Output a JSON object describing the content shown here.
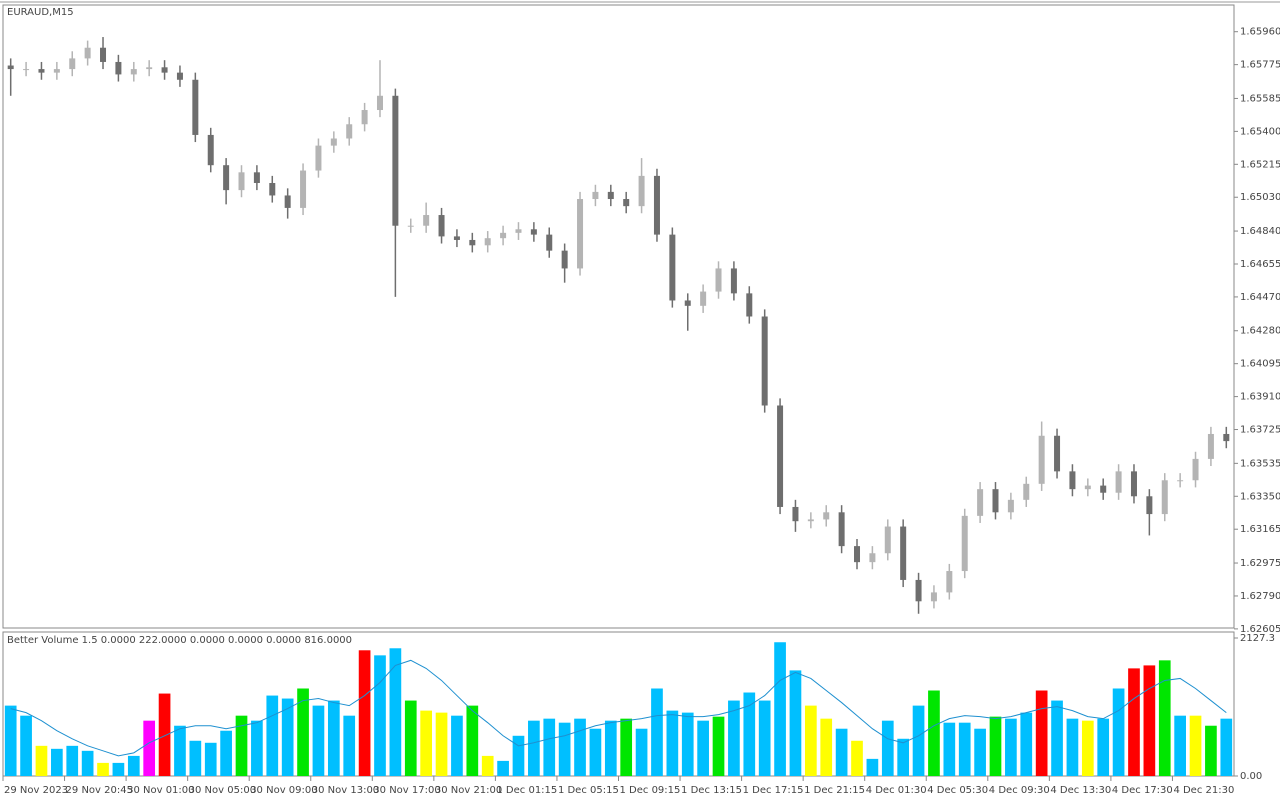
{
  "chart_data": [
    {
      "type": "candlestick",
      "title": "EURAUD,M15",
      "open": [
        1.6577,
        1.6575,
        1.6575,
        1.6573,
        1.6575,
        1.6581,
        1.6587,
        1.6579,
        1.6572,
        1.6575,
        1.6576,
        1.6573,
        1.6569,
        1.6538,
        1.6521,
        1.6507,
        1.6517,
        1.6511,
        1.6504,
        1.6497,
        1.6518,
        1.6532,
        1.6536,
        1.6544,
        1.6552,
        1.656,
        1.6487,
        1.6487,
        1.6493,
        1.6481,
        1.6479,
        1.6476,
        1.648,
        1.6483,
        1.6485,
        1.6482,
        1.6473,
        1.6463,
        1.6502,
        1.6506,
        1.6502,
        1.6498,
        1.6515,
        1.6482,
        1.6445,
        1.6442,
        1.645,
        1.6463,
        1.6449,
        1.6436,
        1.6386,
        1.6329,
        1.6321,
        1.6322,
        1.6326,
        1.6307,
        1.6298,
        1.6303,
        1.6318,
        1.6288,
        1.6276,
        1.6281,
        1.6293,
        1.6324,
        1.6339,
        1.6326,
        1.6333,
        1.6342,
        1.6369,
        1.6349,
        1.6339,
        1.6341,
        1.6337,
        1.6349,
        1.6335,
        1.6325,
        1.6344,
        1.6344,
        1.6356,
        1.637
      ],
      "high": [
        1.6581,
        1.6579,
        1.6579,
        1.6579,
        1.6585,
        1.6591,
        1.6593,
        1.6583,
        1.6579,
        1.658,
        1.658,
        1.6577,
        1.6573,
        1.6542,
        1.6525,
        1.6521,
        1.6521,
        1.6515,
        1.6508,
        1.6522,
        1.6536,
        1.654,
        1.6548,
        1.6556,
        1.658,
        1.6564,
        1.6491,
        1.65,
        1.6497,
        1.6485,
        1.6483,
        1.6484,
        1.6487,
        1.6489,
        1.6489,
        1.6486,
        1.6477,
        1.6506,
        1.651,
        1.651,
        1.6506,
        1.6525,
        1.6519,
        1.6486,
        1.6449,
        1.6454,
        1.6467,
        1.6467,
        1.6453,
        1.644,
        1.639,
        1.6333,
        1.6326,
        1.633,
        1.633,
        1.6311,
        1.6307,
        1.6322,
        1.6322,
        1.6292,
        1.6285,
        1.6297,
        1.6328,
        1.6343,
        1.6343,
        1.6337,
        1.6346,
        1.6377,
        1.6373,
        1.6353,
        1.6345,
        1.6345,
        1.6353,
        1.6353,
        1.6339,
        1.6348,
        1.6348,
        1.636,
        1.6374,
        1.6374
      ],
      "low": [
        1.656,
        1.6571,
        1.6569,
        1.6569,
        1.6571,
        1.6577,
        1.6575,
        1.6568,
        1.6568,
        1.6571,
        1.6569,
        1.6565,
        1.6534,
        1.6517,
        1.6499,
        1.6503,
        1.6507,
        1.65,
        1.6491,
        1.6493,
        1.6514,
        1.6528,
        1.6532,
        1.654,
        1.6548,
        1.6447,
        1.6483,
        1.6483,
        1.6477,
        1.6475,
        1.6472,
        1.6472,
        1.6476,
        1.6479,
        1.6478,
        1.6469,
        1.6455,
        1.6459,
        1.6498,
        1.6498,
        1.6494,
        1.6494,
        1.6478,
        1.6441,
        1.6428,
        1.6438,
        1.6446,
        1.6445,
        1.6432,
        1.6382,
        1.6325,
        1.6315,
        1.6317,
        1.6318,
        1.6303,
        1.6294,
        1.6294,
        1.6299,
        1.6284,
        1.6269,
        1.6272,
        1.6277,
        1.6289,
        1.632,
        1.6322,
        1.6322,
        1.6329,
        1.6338,
        1.6345,
        1.6335,
        1.6335,
        1.6333,
        1.6333,
        1.6331,
        1.6313,
        1.6321,
        1.634,
        1.634,
        1.6352,
        1.6362
      ],
      "close": [
        1.6575,
        1.6575,
        1.6573,
        1.6575,
        1.6581,
        1.6587,
        1.6579,
        1.6572,
        1.6575,
        1.6576,
        1.6573,
        1.6569,
        1.6538,
        1.6521,
        1.6507,
        1.6517,
        1.6511,
        1.6504,
        1.6497,
        1.6518,
        1.6532,
        1.6536,
        1.6544,
        1.6552,
        1.656,
        1.6487,
        1.6487,
        1.6493,
        1.6481,
        1.6479,
        1.6476,
        1.648,
        1.6483,
        1.6485,
        1.6482,
        1.6473,
        1.6463,
        1.6502,
        1.6506,
        1.6502,
        1.6498,
        1.6515,
        1.6482,
        1.6445,
        1.6442,
        1.645,
        1.6463,
        1.6449,
        1.6436,
        1.6386,
        1.6329,
        1.6321,
        1.6322,
        1.6326,
        1.6307,
        1.6298,
        1.6303,
        1.6318,
        1.6288,
        1.6276,
        1.6281,
        1.6293,
        1.6324,
        1.6339,
        1.6326,
        1.6333,
        1.6342,
        1.6369,
        1.6349,
        1.6339,
        1.6341,
        1.6337,
        1.6349,
        1.6335,
        1.6325,
        1.6344,
        1.6344,
        1.6356,
        1.637,
        1.6366
      ],
      "up_color": "#b4b4b4",
      "down_color": "#6e6e6e",
      "ylim": [
        1.6261,
        1.6611
      ],
      "yticks": [
        {
          "value": 1.6596,
          "label": "1.65960"
        },
        1.65775,
        1.65585,
        {
          "value": 1.654,
          "label": "1.65400"
        },
        1.65215,
        {
          "value": 1.6503,
          "label": "1.65030"
        },
        {
          "value": 1.6484,
          "label": "1.64840"
        },
        1.64655,
        {
          "value": 1.6447,
          "label": "1.64470"
        },
        {
          "value": 1.6428,
          "label": "1.64280"
        },
        1.64095,
        {
          "value": 1.6391,
          "label": "1.63910"
        },
        1.63725,
        1.63535,
        {
          "value": 1.6335,
          "label": "1.63350"
        },
        1.63165,
        1.62975,
        {
          "value": 1.6279,
          "label": "1.62790"
        },
        1.62605
      ]
    },
    {
      "type": "bar",
      "title": "Better Volume 1.5 0.0000 222.0000 0.0000 0.0000 0.0000 816.0000",
      "categories": [
        "29 Nov 2023",
        null,
        null,
        null,
        "29 Nov 20:45",
        null,
        null,
        null,
        "30 Nov 01:00",
        null,
        null,
        null,
        "30 Nov 05:00",
        null,
        null,
        null,
        "30 Nov 09:00",
        null,
        null,
        null,
        "30 Nov 13:00",
        null,
        null,
        null,
        "30 Nov 17:00",
        null,
        null,
        null,
        "30 Nov 21:00",
        null,
        null,
        null,
        "1 Dec 01:15",
        null,
        null,
        null,
        "1 Dec 05:15",
        null,
        null,
        null,
        "1 Dec 09:15",
        null,
        null,
        null,
        "1 Dec 13:15",
        null,
        null,
        null,
        "1 Dec 17:15",
        null,
        null,
        null,
        "1 Dec 21:15",
        null,
        null,
        null,
        "4 Dec 01:30",
        null,
        null,
        null,
        "4 Dec 05:30",
        null,
        null,
        null,
        "4 Dec 09:30",
        null,
        null,
        null,
        "4 Dec 13:30",
        null,
        null,
        null,
        "4 Dec 17:30",
        null,
        null,
        null,
        "4 Dec 21:30",
        null,
        null,
        null
      ],
      "values": [
        1085,
        930,
        465,
        419,
        465,
        388,
        202,
        202,
        310,
        853,
        1271,
        775,
        543,
        512,
        698,
        930,
        853,
        1240,
        1194,
        1349,
        1085,
        1163,
        930,
        1938,
        1860,
        1969,
        1163,
        1008,
        977,
        930,
        1085,
        310,
        233,
        620,
        853,
        884,
        822,
        884,
        729,
        853,
        884,
        729,
        1349,
        1008,
        977,
        853,
        915,
        1163,
        1287,
        1163,
        2062,
        1628,
        1085,
        884,
        729,
        543,
        264,
        853,
        574,
        1085,
        1318,
        822,
        822,
        729,
        915,
        884,
        977,
        1318,
        1163,
        884,
        853,
        884,
        1349,
        1659,
        1705,
        1783,
        930,
        930,
        775,
        884
      ],
      "colors": [
        "#00bfff",
        "#00bfff",
        "#ffff00",
        "#00bfff",
        "#00bfff",
        "#00bfff",
        "#ffff00",
        "#00bfff",
        "#00bfff",
        "#ff00ff",
        "#ff0000",
        "#00bfff",
        "#00bfff",
        "#00bfff",
        "#00bfff",
        "#00e600",
        "#00bfff",
        "#00bfff",
        "#00bfff",
        "#00e600",
        "#00bfff",
        "#00bfff",
        "#00bfff",
        "#ff0000",
        "#00bfff",
        "#00bfff",
        "#00e600",
        "#ffff00",
        "#ffff00",
        "#00bfff",
        "#00e600",
        "#ffff00",
        "#00bfff",
        "#00bfff",
        "#00bfff",
        "#00bfff",
        "#00bfff",
        "#00bfff",
        "#00bfff",
        "#00bfff",
        "#00e600",
        "#00bfff",
        "#00bfff",
        "#00bfff",
        "#00bfff",
        "#00bfff",
        "#00e600",
        "#00bfff",
        "#00bfff",
        "#00bfff",
        "#00bfff",
        "#00bfff",
        "#ffff00",
        "#ffff00",
        "#00bfff",
        "#ffff00",
        "#00bfff",
        "#00bfff",
        "#00bfff",
        "#00bfff",
        "#00e600",
        "#00bfff",
        "#00bfff",
        "#00bfff",
        "#00e600",
        "#00bfff",
        "#00bfff",
        "#ff0000",
        "#00bfff",
        "#00bfff",
        "#ffff00",
        "#00bfff",
        "#00bfff",
        "#ff0000",
        "#ff0000",
        "#00e600",
        "#00bfff",
        "#ffff00",
        "#00e600",
        "#00bfff"
      ],
      "ma": [
        1039,
        977,
        853,
        698,
        574,
        465,
        388,
        310,
        357,
        512,
        620,
        729,
        775,
        775,
        729,
        775,
        822,
        930,
        1039,
        1163,
        1194,
        1132,
        1085,
        1240,
        1442,
        1705,
        1783,
        1659,
        1473,
        1240,
        1008,
        822,
        620,
        465,
        512,
        574,
        620,
        698,
        775,
        822,
        853,
        884,
        930,
        946,
        915,
        915,
        946,
        1008,
        1085,
        1240,
        1473,
        1597,
        1504,
        1318,
        1132,
        930,
        729,
        574,
        512,
        620,
        775,
        884,
        930,
        915,
        884,
        915,
        977,
        1039,
        1070,
        1008,
        915,
        884,
        1008,
        1194,
        1349,
        1473,
        1504,
        1349,
        1163,
        977
      ],
      "ma_color": "#1e90d0",
      "ylim": [
        0,
        2220
      ],
      "yticks": [
        2127.3,
        {
          "value": 0,
          "label": "0.00"
        }
      ]
    }
  ]
}
